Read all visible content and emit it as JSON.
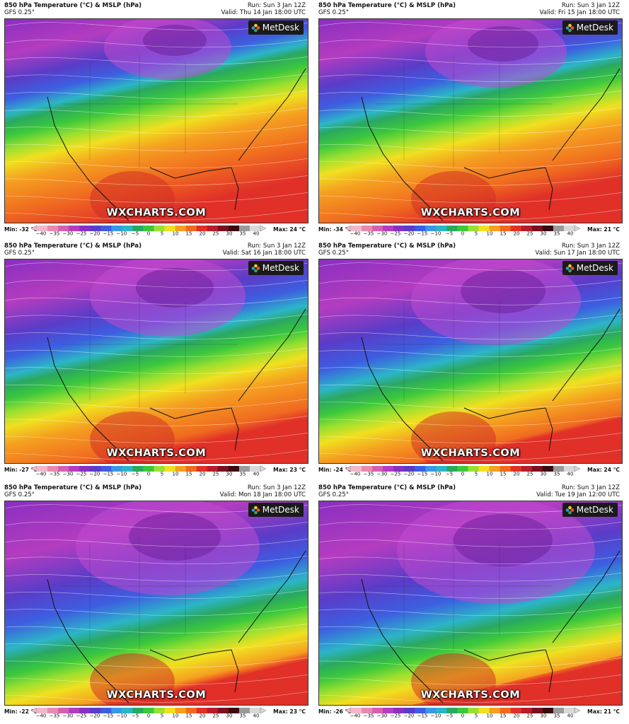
{
  "legend": {
    "ticks": [
      "−40",
      "−35",
      "−30",
      "−25",
      "−20",
      "−15",
      "−10",
      "−5",
      "0",
      "5",
      "10",
      "15",
      "20",
      "25",
      "30",
      "35",
      "40"
    ],
    "colors": [
      "#f0b8c8",
      "#e88ab0",
      "#d55fb0",
      "#b43cc0",
      "#8a2fc0",
      "#5a3cc8",
      "#3d5ee0",
      "#3c96e8",
      "#2cb5c8",
      "#2aa860",
      "#3cc83c",
      "#9be030",
      "#f0e020",
      "#f5a020",
      "#f06a20",
      "#e03028",
      "#b81c28",
      "#7a1020",
      "#3a0a10",
      "#9a9a9a",
      "#d8d8d8"
    ]
  },
  "panels": [
    {
      "title": "850 hPa Temperature (°C) & MSLP (hPa)",
      "model": "GFS 0.25°",
      "run": "Run: Sun 3 Jan 12Z",
      "valid": "Valid: Thu 14 Jan 18:00 UTC",
      "brand": "MetDesk",
      "watermark": "WXCHARTS.COM",
      "min": "Min: -32 °C",
      "max": "Max: 24 °C",
      "cold": 0.45
    },
    {
      "title": "850 hPa Temperature (°C) & MSLP (hPa)",
      "model": "GFS 0.25°",
      "run": "Run: Sun 3 Jan 12Z",
      "valid": "Valid: Fri 15 Jan 18:00 UTC",
      "brand": "MetDesk",
      "watermark": "WXCHARTS.COM",
      "min": "Min: -34 °C",
      "max": "Max: 21 °C",
      "cold": 0.5
    },
    {
      "title": "850 hPa Temperature (°C) & MSLP (hPa)",
      "model": "GFS 0.25°",
      "run": "Run: Sun 3 Jan 12Z",
      "valid": "Valid: Sat 16 Jan 18:00 UTC",
      "brand": "MetDesk",
      "watermark": "WXCHARTS.COM",
      "min": "Min: -27 °C",
      "max": "Max: 23 °C",
      "cold": 0.55
    },
    {
      "title": "850 hPa Temperature (°C) & MSLP (hPa)",
      "model": "GFS 0.25°",
      "run": "Run: Sun 3 Jan 12Z",
      "valid": "Valid: Sun 17 Jan 18:00 UTC",
      "brand": "MetDesk",
      "watermark": "WXCHARTS.COM",
      "min": "Min: -24 °C",
      "max": "Max: 24 °C",
      "cold": 0.62
    },
    {
      "title": "850 hPa Temperature (°C) & MSLP (hPa)",
      "model": "GFS 0.25°",
      "run": "Run: Sun 3 Jan 12Z",
      "valid": "Valid: Mon 18 Jan 18:00 UTC",
      "brand": "MetDesk",
      "watermark": "WXCHARTS.COM",
      "min": "Min: -22 °C",
      "max": "Max: 23 °C",
      "cold": 0.7
    },
    {
      "title": "850 hPa Temperature (°C) & MSLP (hPa)",
      "model": "GFS 0.25°",
      "run": "Run: Sun 3 Jan 12Z",
      "valid": "Valid: Tue 19 Jan 12:00 UTC",
      "brand": "MetDesk",
      "watermark": "WXCHARTS.COM",
      "min": "Min: -26 °C",
      "max": "Max: 21 °C",
      "cold": 0.72
    }
  ]
}
